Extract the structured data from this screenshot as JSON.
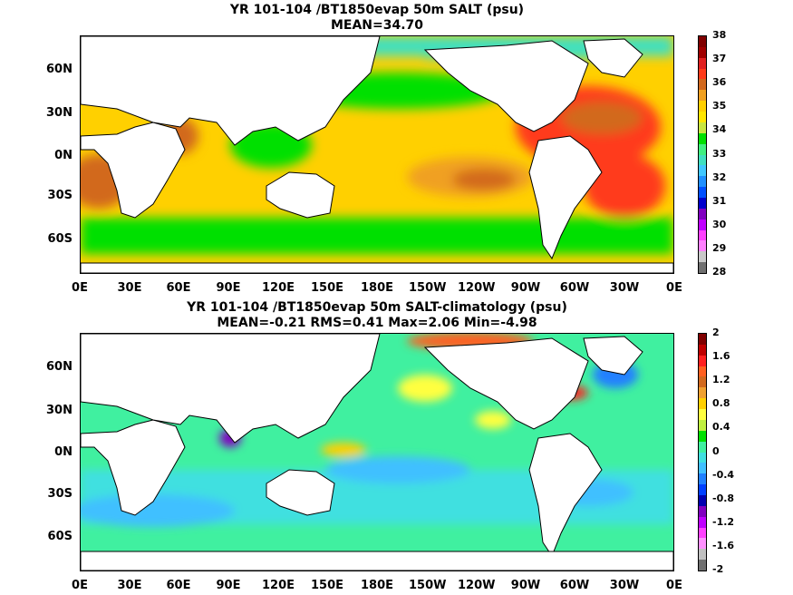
{
  "top": {
    "title": "YR 101-104 /BT1850evap 50m SALT (psu)",
    "subtitle": "MEAN=34.70",
    "colorbar_labels": [
      "38",
      "37",
      "36",
      "35",
      "34",
      "33",
      "32",
      "31",
      "30",
      "29",
      "28"
    ],
    "colorbar_colors": [
      "#800000",
      "#a00000",
      "#e02020",
      "#ff3b1a",
      "#d2691e",
      "#f0a020",
      "#ffd000",
      "#ffe600",
      "#c8e640",
      "#00e000",
      "#40f080",
      "#40e0c0",
      "#40c8ff",
      "#2090ff",
      "#0050ff",
      "#0000cc",
      "#8000c0",
      "#c000ff",
      "#ff40ff",
      "#ff80ff",
      "#c8c8c8",
      "#707070"
    ]
  },
  "bottom": {
    "title": "YR 101-104 /BT1850evap 50m SALT-climatology (psu)",
    "subtitle": "MEAN=-0.21   RMS=0.41   Max=2.06   Min=-4.98",
    "colorbar_labels": [
      "2",
      "1.6",
      "1.2",
      "0.8",
      "0.4",
      "0",
      "-0.4",
      "-0.8",
      "-1.2",
      "-1.6",
      "-2"
    ],
    "colorbar_colors": [
      "#800000",
      "#c00000",
      "#ff2020",
      "#ff6020",
      "#d2691e",
      "#f0a030",
      "#ffd000",
      "#ffff40",
      "#c0f040",
      "#00e000",
      "#40f0a0",
      "#40e0e0",
      "#40c0ff",
      "#2080ff",
      "#0040ff",
      "#0000b0",
      "#8000c0",
      "#c000ff",
      "#ff40ff",
      "#ff90ff",
      "#c0c0c0",
      "#707070"
    ]
  },
  "lat_labels": [
    "60N",
    "30N",
    "0N",
    "30S",
    "60S"
  ],
  "lon_labels": [
    "0E",
    "30E",
    "60E",
    "90E",
    "120E",
    "150E",
    "180E",
    "150W",
    "120W",
    "90W",
    "60W",
    "30W",
    "0E"
  ]
}
